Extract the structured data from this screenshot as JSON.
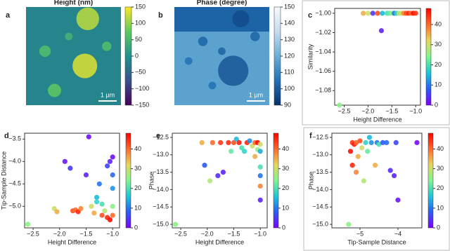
{
  "chart_data": [
    {
      "type": "image",
      "panel": "a",
      "title": "Height (nm)",
      "scale_bar": "1 µm",
      "colormap": [
        "#440154",
        "#3b528b",
        "#21918c",
        "#5ec962",
        "#fde725"
      ],
      "clim": [
        -150,
        150
      ],
      "cticks": [
        {
          "value": -150,
          "label": "−150"
        },
        {
          "value": -100,
          "label": "−100"
        },
        {
          "value": -50,
          "label": "−50"
        },
        0,
        50,
        100,
        150
      ]
    },
    {
      "type": "image",
      "panel": "b",
      "title": "Phase (degree)",
      "scale_bar": "1 µm",
      "colormap": [
        "#08306b",
        "#2171b5",
        "#6baed6",
        "#c6dbef",
        "#f7fbff"
      ],
      "clim": [
        90,
        150
      ],
      "cticks": [
        90,
        100,
        110,
        120,
        130,
        140,
        150
      ]
    },
    {
      "type": "scatter",
      "panel": "c",
      "xlabel": "Height Difference",
      "ylabel": "Similarity",
      "x": [
        -2.6,
        -2.1,
        -2.0,
        -1.9,
        -1.8,
        -1.72,
        -1.7,
        -1.6,
        -1.55,
        -1.5,
        -1.45,
        -1.4,
        -1.35,
        -1.3,
        -1.25,
        -1.2,
        -1.15,
        -1.1,
        -1.05,
        -1.0
      ],
      "y": [
        -1.095,
        -1.0,
        -1.0,
        -1.0,
        -1.0,
        -1.018,
        -1.0,
        -1.0,
        -1.0,
        -1.0,
        -1.0,
        -1.0,
        -1.0,
        -1.0,
        -1.0,
        -1.0,
        -1.0,
        -1.0,
        -1.0,
        -1.0
      ],
      "c": [
        25,
        35,
        30,
        5,
        42,
        3,
        15,
        20,
        22,
        25,
        10,
        18,
        28,
        30,
        38,
        42,
        45,
        40,
        47,
        44
      ],
      "xlim": [
        -2.7,
        -0.9
      ],
      "ylim": [
        -1.095,
        -0.995
      ],
      "xticks": [
        {
          "value": -2.5,
          "label": "−2.5"
        },
        {
          "value": -2.0,
          "label": "−2.0"
        },
        {
          "value": -1.5,
          "label": "−1.5"
        },
        {
          "value": -1.0,
          "label": "−1.0"
        }
      ],
      "yticks": [
        {
          "value": -1.08,
          "label": "−1.08"
        },
        {
          "value": -1.06,
          "label": "−1.06"
        },
        {
          "value": -1.04,
          "label": "−1.04"
        },
        {
          "value": -1.02,
          "label": "−1.02"
        },
        {
          "value": -1.0,
          "label": "−1.00"
        }
      ],
      "colormap": [
        "#7f00ff",
        "#2a5cf5",
        "#1bc7d9",
        "#7ff58e",
        "#e6d65c",
        "#ff6a2b",
        "#ff0000"
      ],
      "clim": [
        0,
        48
      ],
      "cticks": [
        0,
        10,
        20,
        30,
        40
      ]
    },
    {
      "type": "scatter",
      "panel": "d",
      "xlabel": "Height Difference",
      "ylabel": "Tip-Sample Distance",
      "x": [
        -2.6,
        -2.1,
        -2.05,
        -1.9,
        -1.8,
        -1.75,
        -1.7,
        -1.65,
        -1.6,
        -1.5,
        -1.45,
        -1.4,
        -1.35,
        -1.3,
        -1.3,
        -1.25,
        -1.2,
        -1.2,
        -1.15,
        -1.1,
        -1.1,
        -1.05,
        -1.05,
        -1.0,
        -1.0,
        -1.0,
        -1.0,
        -1.0
      ],
      "y": [
        -5.4,
        -5.05,
        -5.12,
        -4.0,
        -4.15,
        -5.1,
        -5.08,
        -5.12,
        -5.05,
        -4.3,
        -3.45,
        -5.0,
        -5.15,
        -4.8,
        -4.9,
        -4.5,
        -4.95,
        -5.2,
        -5.1,
        -4.1,
        -5.25,
        -4.0,
        -5.3,
        -4.6,
        -5.0,
        -5.2,
        -4.3,
        -3.9
      ],
      "c": [
        25,
        30,
        35,
        2,
        5,
        42,
        40,
        45,
        38,
        3,
        1,
        30,
        35,
        15,
        18,
        10,
        20,
        42,
        28,
        6,
        45,
        3,
        47,
        12,
        25,
        40,
        9,
        1
      ],
      "xlim": [
        -2.66,
        -0.87
      ],
      "ylim": [
        -5.48,
        -3.37
      ],
      "xticks": [
        {
          "value": -2.5,
          "label": "−2.5"
        },
        {
          "value": -2.0,
          "label": "−2.0"
        },
        {
          "value": -1.5,
          "label": "−1.5"
        },
        {
          "value": -1.0,
          "label": "−1.0"
        }
      ],
      "yticks": [
        {
          "value": -5.0,
          "label": "−5.0"
        },
        {
          "value": -4.5,
          "label": "−4.5"
        },
        {
          "value": -4.0,
          "label": "−4.0"
        },
        {
          "value": -3.5,
          "label": "−3.5"
        }
      ],
      "colormap": [
        "#7f00ff",
        "#2a5cf5",
        "#1bc7d9",
        "#7ff58e",
        "#e6d65c",
        "#ff6a2b",
        "#ff0000"
      ],
      "clim": [
        0,
        48
      ],
      "cticks": [
        0,
        10,
        20,
        30,
        40
      ]
    },
    {
      "type": "scatter",
      "panel": "e",
      "xlabel": "Height Difference",
      "ylabel": "Phase",
      "x": [
        -2.6,
        -2.1,
        -2.05,
        -1.95,
        -1.9,
        -1.8,
        -1.7,
        -1.75,
        -1.6,
        -1.55,
        -1.5,
        -1.45,
        -1.4,
        -1.35,
        -1.3,
        -1.25,
        -1.2,
        -1.15,
        -1.1,
        -1.1,
        -1.05,
        -1.05,
        -1.0,
        -1.0,
        -1.0,
        -1.0,
        -1.0,
        -1.0
      ],
      "y": [
        -15.0,
        -12.65,
        -13.3,
        -13.75,
        -12.65,
        -13.6,
        -13.5,
        -12.65,
        -12.65,
        -12.9,
        -12.65,
        -12.55,
        -12.65,
        -12.8,
        -12.9,
        -12.65,
        -12.6,
        -12.75,
        -12.65,
        -13.05,
        -12.65,
        -12.85,
        -12.7,
        -13.35,
        -13.6,
        -13.9,
        -14.3,
        -12.9
      ],
      "c": [
        25,
        35,
        8,
        28,
        40,
        4,
        3,
        44,
        45,
        22,
        42,
        15,
        46,
        20,
        18,
        45,
        12,
        30,
        40,
        35,
        47,
        25,
        30,
        20,
        10,
        38,
        3,
        14
      ],
      "xlim": [
        -2.66,
        -0.87
      ],
      "ylim": [
        -15.1,
        -12.38
      ],
      "xticks": [
        {
          "value": -2.5,
          "label": "−2.5"
        },
        {
          "value": -2.0,
          "label": "−2.0"
        },
        {
          "value": -1.5,
          "label": "−1.5"
        },
        {
          "value": -1.0,
          "label": "−1.0"
        }
      ],
      "yticks": [
        {
          "value": -15.0,
          "label": "−15.0"
        },
        {
          "value": -14.5,
          "label": "−14.5"
        },
        {
          "value": -14.0,
          "label": "−14.0"
        },
        {
          "value": -13.5,
          "label": "−13.5"
        },
        {
          "value": -13.0,
          "label": "−13.0"
        },
        {
          "value": -12.5,
          "label": "−12.5"
        }
      ],
      "colormap": [
        "#7f00ff",
        "#2a5cf5",
        "#1bc7d9",
        "#7ff58e",
        "#e6d65c",
        "#ff6a2b",
        "#ff0000"
      ],
      "clim": [
        0,
        48
      ],
      "cticks": [
        0,
        10,
        20,
        30,
        40
      ]
    },
    {
      "type": "scatter",
      "panel": "f",
      "xlabel": "Tip-Sample Distance",
      "ylabel": "Phase",
      "x": [
        -5.3,
        -5.2,
        -5.15,
        -5.1,
        -5.05,
        -5.0,
        -4.95,
        -4.9,
        -5.1,
        -4.85,
        -4.8,
        -4.75,
        -4.7,
        -4.6,
        -4.55,
        -4.5,
        -4.4,
        -4.3,
        -4.2,
        -4.1,
        -4.05,
        -4.0,
        -3.5,
        -5.2,
        -5.25
      ],
      "y": [
        -15.0,
        -12.65,
        -12.7,
        -12.65,
        -13.05,
        -12.6,
        -12.8,
        -13.75,
        -13.5,
        -12.65,
        -12.9,
        -12.5,
        -12.65,
        -13.3,
        -12.65,
        -12.7,
        -12.65,
        -12.65,
        -13.45,
        -13.6,
        -12.65,
        -14.3,
        -12.65,
        -13.3,
        -12.9
      ],
      "c": [
        25,
        44,
        46,
        40,
        35,
        42,
        30,
        28,
        38,
        18,
        22,
        15,
        12,
        35,
        10,
        20,
        8,
        9,
        4,
        3,
        6,
        2,
        1,
        45,
        47
      ],
      "xlim": [
        -5.74,
        -3.37
      ],
      "ylim": [
        -15.1,
        -12.38
      ],
      "xticks": [
        {
          "value": -5,
          "label": "−5"
        },
        {
          "value": -4,
          "label": "−4"
        }
      ],
      "yticks": [
        {
          "value": -15.0,
          "label": "−15.0"
        },
        {
          "value": -14.5,
          "label": "−14.5"
        },
        {
          "value": -14.0,
          "label": "−14.0"
        },
        {
          "value": -13.5,
          "label": "−13.5"
        },
        {
          "value": -13.0,
          "label": "−13.0"
        },
        {
          "value": -12.5,
          "label": "−12.5"
        }
      ],
      "colormap": [
        "#7f00ff",
        "#2a5cf5",
        "#1bc7d9",
        "#7ff58e",
        "#e6d65c",
        "#ff6a2b",
        "#ff0000"
      ],
      "clim": [
        0,
        48
      ],
      "cticks": [
        0,
        10,
        20,
        30,
        40
      ]
    }
  ]
}
